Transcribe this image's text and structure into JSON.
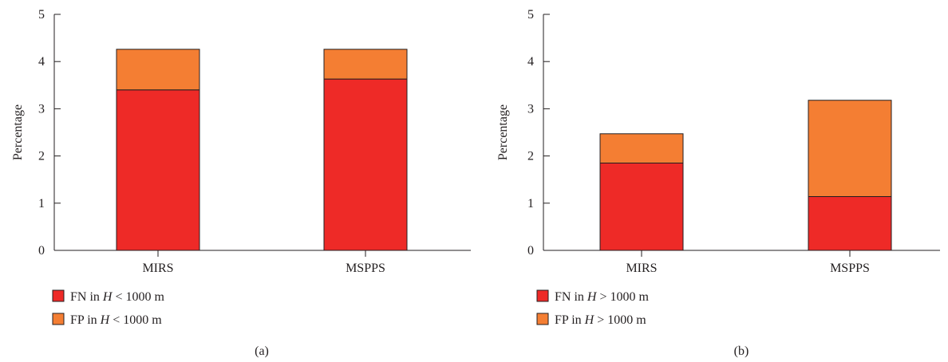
{
  "chart_data": [
    {
      "type": "bar",
      "stacked": true,
      "panel_label": "(a)",
      "ylabel": "Percentage",
      "xlabel": "",
      "ylim": [
        0,
        5
      ],
      "yticks": [
        "0",
        "1",
        "2",
        "3",
        "4",
        "5"
      ],
      "categories": [
        "MIRS",
        "MSPPS"
      ],
      "series": [
        {
          "name": "FN in H < 1000 m",
          "name_parts": [
            "FN in ",
            "H",
            " < 1000 m"
          ],
          "color": "#ee2a27",
          "values": [
            3.4,
            3.63
          ]
        },
        {
          "name": "FP in H < 1000 m",
          "name_parts": [
            "FP in ",
            "H",
            " < 1000 m"
          ],
          "color": "#f47e33",
          "values": [
            0.86,
            0.63
          ]
        }
      ],
      "legend_position": "bottom-left",
      "grid": false
    },
    {
      "type": "bar",
      "stacked": true,
      "panel_label": "(b)",
      "ylabel": "Percentage",
      "xlabel": "",
      "ylim": [
        0,
        5
      ],
      "yticks": [
        "0",
        "1",
        "2",
        "3",
        "4",
        "5"
      ],
      "categories": [
        "MIRS",
        "MSPPS"
      ],
      "series": [
        {
          "name": "FN in H > 1000 m",
          "name_parts": [
            "FN in ",
            "H",
            " > 1000 m"
          ],
          "color": "#ee2a27",
          "values": [
            1.85,
            1.14
          ]
        },
        {
          "name": "FP in H > 1000 m",
          "name_parts": [
            "FP in ",
            "H",
            " > 1000 m"
          ],
          "color": "#f47e33",
          "values": [
            0.62,
            2.04
          ]
        }
      ],
      "legend_position": "bottom-left",
      "grid": false
    }
  ]
}
